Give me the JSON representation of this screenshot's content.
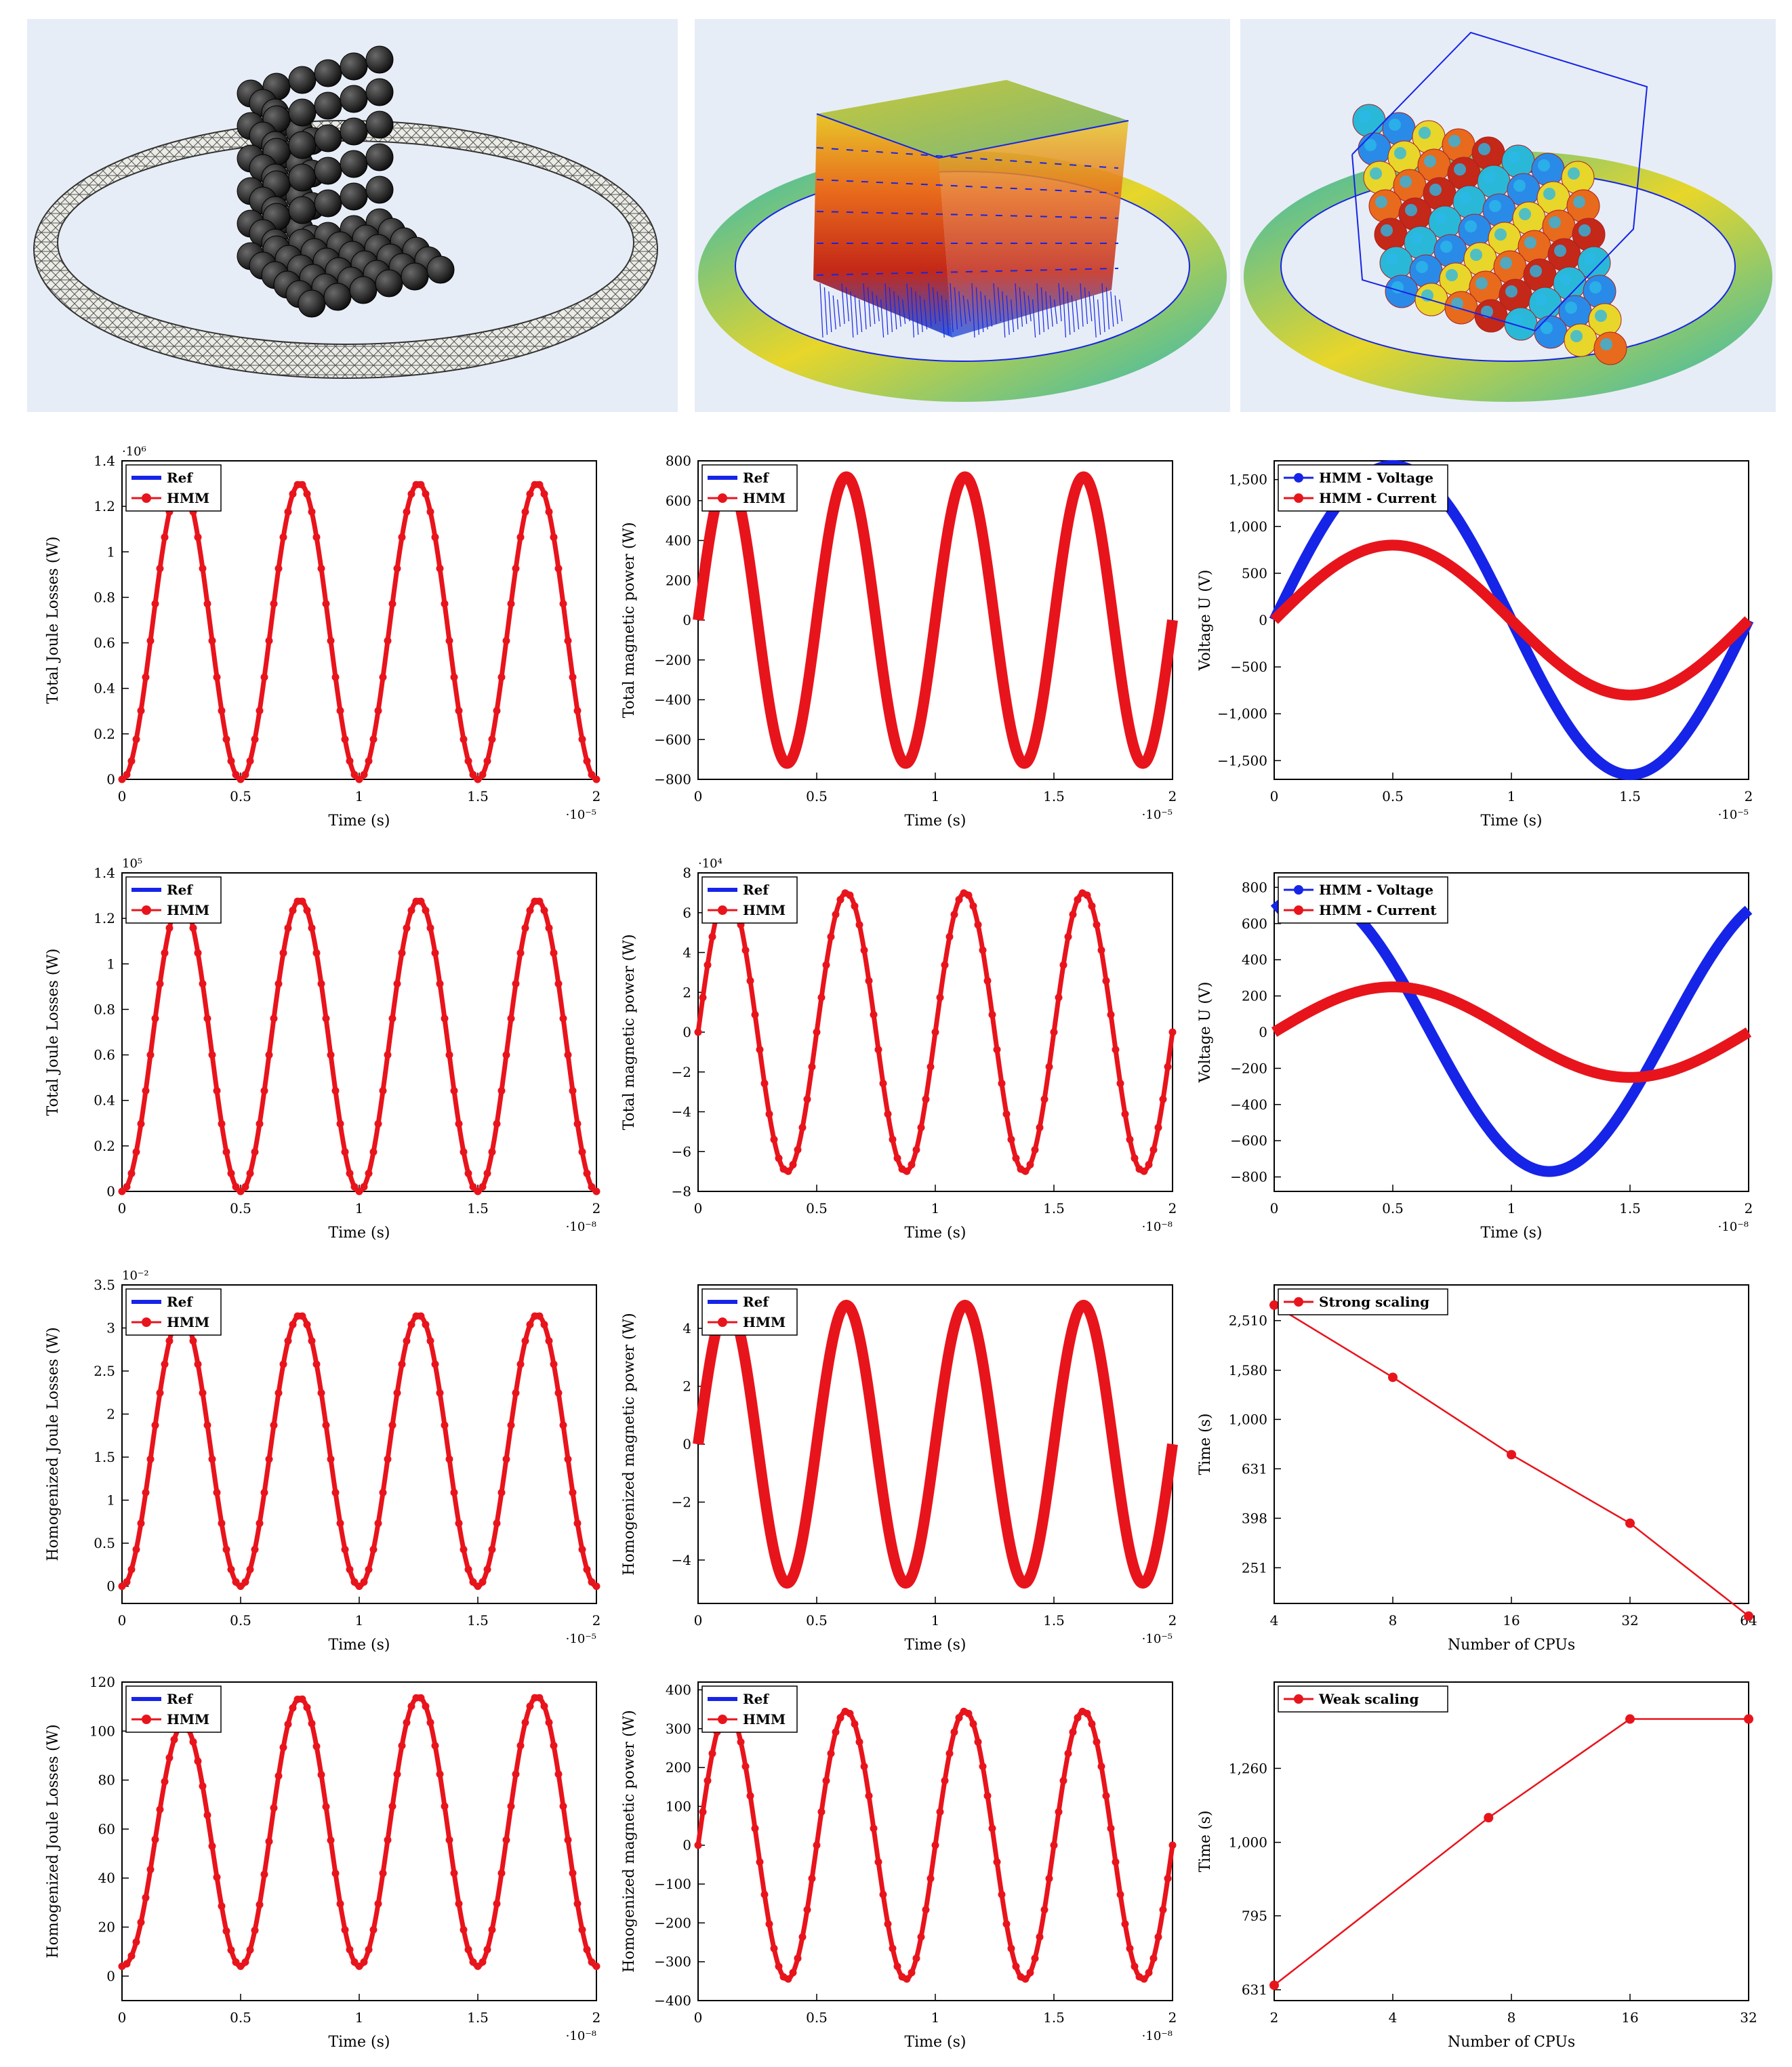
{
  "colors": {
    "red": "#e8141c",
    "blue": "#1624e8",
    "teal": "#2ab8b8",
    "yellow": "#e8d62a",
    "orange": "#e86a1c",
    "mesh_gray": "#5a5a5a",
    "sphere_dark": "#1c1c1c"
  },
  "renders": [
    {
      "name": "mesh-render"
    },
    {
      "name": "field-render-arrows"
    },
    {
      "name": "field-render-spheres"
    }
  ],
  "chart_data": [
    {
      "type": "line",
      "id": "p1",
      "ylabel": "Total Joule Losses (W)",
      "xlabel": "Time (s)",
      "xlim": [
        0,
        2
      ],
      "ylim": [
        0,
        1.4
      ],
      "xticks": [
        "0",
        "0.5",
        "1",
        "1.5",
        "2"
      ],
      "yticks": [
        "0",
        "0.2",
        "0.4",
        "0.6",
        "0.8",
        "1",
        "1.2",
        "1.4"
      ],
      "xexp": "·10⁻⁵",
      "yexp": "·10⁶",
      "legend": [
        "Ref",
        "HMM"
      ],
      "legend_pos": "top-left",
      "series": [
        {
          "name": "Ref",
          "color": "#1624e8",
          "form": "sin2",
          "amp": 1.3,
          "periods": 4
        },
        {
          "name": "HMM",
          "color": "#e8141c",
          "form": "sin2",
          "amp": 1.3,
          "periods": 4,
          "marker": "dot"
        }
      ]
    },
    {
      "type": "line",
      "id": "p2",
      "ylabel": "Total magnetic power (W)",
      "xlabel": "Time (s)",
      "xlim": [
        0,
        2
      ],
      "ylim": [
        -800,
        800
      ],
      "xticks": [
        "0",
        "0.5",
        "1",
        "1.5",
        "2"
      ],
      "yticks": [
        "−800",
        "−600",
        "−400",
        "−200",
        "0",
        "200",
        "400",
        "600",
        "800"
      ],
      "xexp": "·10⁻⁵",
      "yexp": "",
      "legend": [
        "Ref",
        "HMM"
      ],
      "legend_pos": "top-left",
      "series": [
        {
          "name": "Ref",
          "color": "#1624e8",
          "form": "sin4",
          "amp": 720,
          "periods": 4
        },
        {
          "name": "HMM",
          "color": "#e8141c",
          "form": "sin4",
          "amp": 720,
          "periods": 4,
          "marker": "thick"
        }
      ]
    },
    {
      "type": "line",
      "id": "p3",
      "ylabel": "Voltage U (V)",
      "xlabel": "Time (s)",
      "xlim": [
        0,
        2
      ],
      "ylim": [
        -1700,
        1700
      ],
      "xticks": [
        "0",
        "0.5",
        "1",
        "1.5",
        "2"
      ],
      "yticks": [
        "−1,500",
        "−1,000",
        "−500",
        "0",
        "500",
        "1,000",
        "1,500"
      ],
      "xexp": "·10⁻⁵",
      "yexp": "",
      "legend": [
        "HMM - Voltage",
        "HMM - Current"
      ],
      "legend_pos": "top-left",
      "series": [
        {
          "name": "HMM - Voltage",
          "color": "#1624e8",
          "form": "sin",
          "amp": 1650,
          "periods": 2,
          "marker": "thick"
        },
        {
          "name": "HMM - Current",
          "color": "#e8141c",
          "form": "sin",
          "amp": 800,
          "periods": 2,
          "marker": "thick"
        }
      ]
    },
    {
      "type": "line",
      "id": "p4",
      "ylabel": "Total Joule Losses (W)",
      "xlabel": "Time (s)",
      "xlim": [
        0,
        2
      ],
      "ylim": [
        0,
        1.4
      ],
      "xticks": [
        "0",
        "0.5",
        "1",
        "1.5",
        "2"
      ],
      "yticks": [
        "0",
        "0.2",
        "0.4",
        "0.6",
        "0.8",
        "1",
        "1.2",
        "1.4"
      ],
      "xexp": "·10⁻⁸",
      "yexp": "10⁵",
      "legend": [
        "Ref",
        "HMM"
      ],
      "legend_pos": "top-left",
      "series": [
        {
          "name": "Ref",
          "color": "#1624e8",
          "form": "sin2",
          "amp": 1.28,
          "periods": 4
        },
        {
          "name": "HMM",
          "color": "#e8141c",
          "form": "sin2",
          "amp": 1.28,
          "periods": 4,
          "marker": "dot"
        }
      ]
    },
    {
      "type": "line",
      "id": "p5",
      "ylabel": "Total magnetic power (W)",
      "xlabel": "Time (s)",
      "xlim": [
        0,
        2
      ],
      "ylim": [
        -8,
        8
      ],
      "xticks": [
        "0",
        "0.5",
        "1",
        "1.5",
        "2"
      ],
      "yticks": [
        "−8",
        "−6",
        "−4",
        "−2",
        "0",
        "2",
        "4",
        "6",
        "8"
      ],
      "xexp": "·10⁻⁸",
      "yexp": "·10⁴",
      "legend": [
        "Ref",
        "HMM"
      ],
      "legend_pos": "top-left",
      "series": [
        {
          "name": "Ref",
          "color": "#1624e8",
          "form": "sin4",
          "amp": 7,
          "periods": 4
        },
        {
          "name": "HMM",
          "color": "#e8141c",
          "form": "sin4",
          "amp": 7,
          "periods": 4,
          "marker": "dot"
        }
      ]
    },
    {
      "type": "line",
      "id": "p6",
      "ylabel": "Voltage U (V)",
      "xlabel": "Time (s)",
      "xlim": [
        0,
        2
      ],
      "ylim": [
        -880,
        880
      ],
      "xticks": [
        "0",
        "0.5",
        "1",
        "1.5",
        "2"
      ],
      "yticks": [
        "−800",
        "−600",
        "−400",
        "−200",
        "0",
        "200",
        "400",
        "600",
        "800"
      ],
      "xexp": "·10⁻⁸",
      "yexp": "",
      "legend": [
        "HMM - Voltage",
        "HMM - Current"
      ],
      "legend_pos": "top-left",
      "series": [
        {
          "name": "HMM - Voltage",
          "color": "#1624e8",
          "form": "cos",
          "amp": 770,
          "periods": 2,
          "phase": -0.5,
          "marker": "thick"
        },
        {
          "name": "HMM - Current",
          "color": "#e8141c",
          "form": "sin",
          "amp": 250,
          "periods": 2,
          "marker": "thick"
        }
      ]
    },
    {
      "type": "line",
      "id": "p7",
      "ylabel": "Homogenized Joule Losses (W)",
      "xlabel": "Time (s)",
      "xlim": [
        0,
        2
      ],
      "ylim": [
        -0.2,
        3.5
      ],
      "xticks": [
        "0",
        "0.5",
        "1",
        "1.5",
        "2"
      ],
      "yticks": [
        "0",
        "0.5",
        "1",
        "1.5",
        "2",
        "2.5",
        "3",
        "3.5"
      ],
      "xexp": "·10⁻⁵",
      "yexp": "10⁻²",
      "legend": [
        "Ref",
        "HMM"
      ],
      "legend_pos": "top-left",
      "series": [
        {
          "name": "Ref",
          "color": "#1624e8",
          "form": "sin2",
          "amp": 3.15,
          "periods": 4,
          "shift": -0.2
        },
        {
          "name": "HMM",
          "color": "#e8141c",
          "form": "sin2",
          "amp": 3.15,
          "periods": 4,
          "shift": -0.2,
          "marker": "dot"
        }
      ]
    },
    {
      "type": "line",
      "id": "p8",
      "ylabel": "Homogenized magnetic power (W)",
      "xlabel": "Time (s)",
      "xlim": [
        0,
        2
      ],
      "ylim": [
        -5.5,
        5.5
      ],
      "xticks": [
        "0",
        "0.5",
        "1",
        "1.5",
        "2"
      ],
      "yticks": [
        "−4",
        "−2",
        "0",
        "2",
        "4"
      ],
      "xexp": "·10⁻⁵",
      "yexp": "",
      "legend": [
        "Ref",
        "HMM"
      ],
      "legend_pos": "top-left",
      "series": [
        {
          "name": "Ref",
          "color": "#1624e8",
          "form": "sin4",
          "amp": 4.8,
          "periods": 4
        },
        {
          "name": "HMM",
          "color": "#e8141c",
          "form": "sin4",
          "amp": 4.8,
          "periods": 4,
          "marker": "thick"
        }
      ]
    },
    {
      "type": "line",
      "id": "p9",
      "ylabel": "Time (s)",
      "xlabel": "Number of CPUs",
      "xscale": "log2",
      "yscale": "log",
      "xvalues": [
        4,
        8,
        16,
        32,
        64
      ],
      "xticks": [
        "4",
        "8",
        "16",
        "32",
        "64"
      ],
      "yticks": [
        "251",
        "398",
        "631",
        "1,000",
        "1,580",
        "2,510"
      ],
      "ytickvals": [
        251,
        398,
        631,
        1000,
        1580,
        2510
      ],
      "ylim": [
        180,
        3500
      ],
      "xexp": "",
      "yexp": "",
      "legend": [
        "Strong scaling"
      ],
      "legend_pos": "top-left",
      "series": [
        {
          "name": "Strong scaling",
          "color": "#e8141c",
          "x": [
            4,
            8,
            16,
            32,
            64
          ],
          "y": [
            2900,
            1480,
            720,
            380,
            160
          ]
        }
      ]
    },
    {
      "type": "line",
      "id": "p10",
      "ylabel": "Homogenized Joule Losses (W)",
      "xlabel": "Time (s)",
      "xlim": [
        0,
        2
      ],
      "ylim": [
        -10,
        120
      ],
      "xticks": [
        "0",
        "0.5",
        "1",
        "1.5",
        "2"
      ],
      "yticks": [
        "0",
        "20",
        "40",
        "60",
        "80",
        "100",
        "120"
      ],
      "xexp": "·10⁻⁸",
      "yexp": "",
      "legend": [
        "Ref",
        "HMM"
      ],
      "legend_pos": "top-left",
      "series": [
        {
          "name": "Ref",
          "color": "#1624e8",
          "form": "envelope",
          "amp": 110,
          "periods": 4
        },
        {
          "name": "HMM",
          "color": "#e8141c",
          "form": "envelope",
          "amp": 110,
          "periods": 4,
          "marker": "dot"
        }
      ]
    },
    {
      "type": "line",
      "id": "p11",
      "ylabel": "Homogenized magnetic power (W)",
      "xlabel": "Time (s)",
      "xlim": [
        0,
        2
      ],
      "ylim": [
        -400,
        420
      ],
      "xticks": [
        "0",
        "0.5",
        "1",
        "1.5",
        "2"
      ],
      "yticks": [
        "−400",
        "−300",
        "−200",
        "−100",
        "0",
        "100",
        "200",
        "300",
        "400"
      ],
      "xexp": "·10⁻⁸",
      "yexp": "",
      "legend": [
        "Ref",
        "HMM"
      ],
      "legend_pos": "top-left",
      "series": [
        {
          "name": "Ref",
          "color": "#1624e8",
          "form": "sin4",
          "amp": 345,
          "periods": 4
        },
        {
          "name": "HMM",
          "color": "#e8141c",
          "form": "sin4",
          "amp": 345,
          "periods": 4,
          "marker": "dot"
        }
      ]
    },
    {
      "type": "line",
      "id": "p12",
      "ylabel": "Time (s)",
      "xlabel": "Number of CPUs",
      "xscale": "log2",
      "yscale": "log",
      "xvalues": [
        2,
        4,
        8,
        16,
        32
      ],
      "xticks": [
        "2",
        "4",
        "8",
        "16",
        "32"
      ],
      "yticks": [
        "631",
        "795",
        "1,000",
        "1,260"
      ],
      "ytickvals": [
        631,
        795,
        1000,
        1260
      ],
      "ylim": [
        610,
        1650
      ],
      "xexp": "",
      "yexp": "",
      "legend": [
        "Weak scaling"
      ],
      "legend_pos": "top-left",
      "series": [
        {
          "name": "Weak scaling",
          "color": "#e8141c",
          "x": [
            2,
            7,
            16,
            32
          ],
          "y": [
            640,
            1080,
            1470,
            1470
          ]
        }
      ]
    }
  ]
}
